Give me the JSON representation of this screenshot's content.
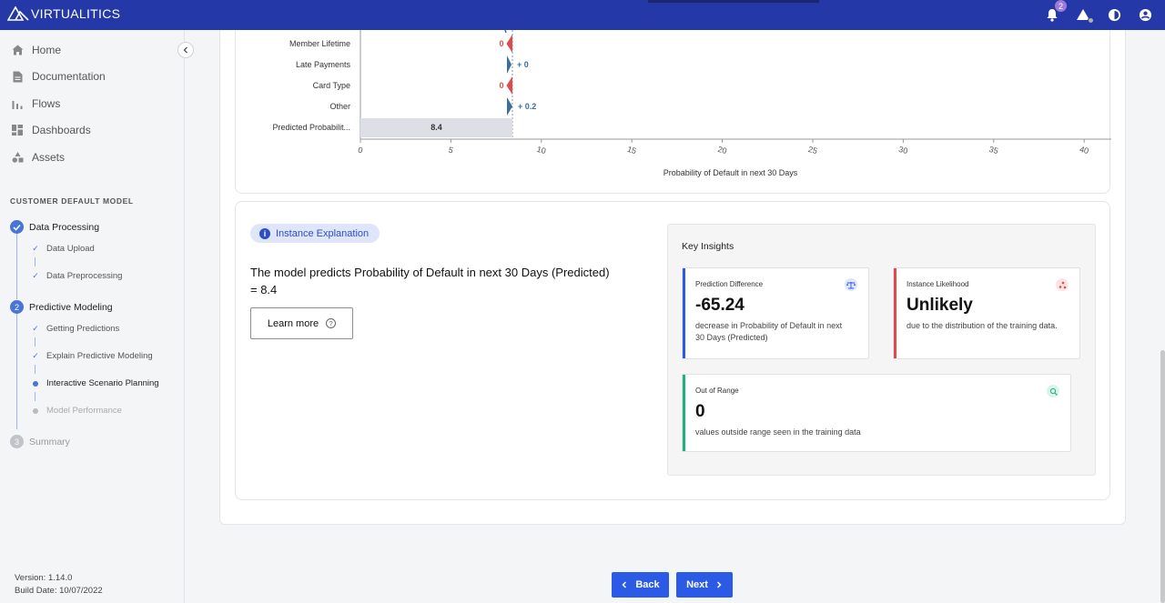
{
  "app": {
    "brand": "VIRTUALITICS",
    "notifications_count": "2"
  },
  "sidebar": {
    "nav": [
      {
        "label": "Home",
        "icon": "home-icon"
      },
      {
        "label": "Documentation",
        "icon": "document-icon"
      },
      {
        "label": "Flows",
        "icon": "flows-icon"
      },
      {
        "label": "Dashboards",
        "icon": "dashboard-icon"
      },
      {
        "label": "Assets",
        "icon": "assets-icon"
      }
    ],
    "section_title": "CUSTOMER DEFAULT MODEL",
    "steps": [
      {
        "number": "",
        "label": "Data Processing",
        "state": "done",
        "subs": [
          {
            "label": "Data Upload",
            "state": "done"
          },
          {
            "label": "Data Preprocessing",
            "state": "done"
          }
        ]
      },
      {
        "number": "2",
        "label": "Predictive Modeling",
        "state": "active",
        "subs": [
          {
            "label": "Getting Predictions",
            "state": "done"
          },
          {
            "label": "Explain Predictive Modeling",
            "state": "done"
          },
          {
            "label": "Interactive Scenario Planning",
            "state": "current"
          },
          {
            "label": "Model Performance",
            "state": "todo"
          }
        ]
      },
      {
        "number": "3",
        "label": "Summary",
        "state": "todo",
        "subs": []
      }
    ],
    "version": "Version: 1.14.0",
    "build_date": "Build Date: 10/07/2022"
  },
  "chart_data": {
    "type": "bar",
    "orientation": "horizontal",
    "categories": [
      "Member Lifetime",
      "Late Payments",
      "Card Type",
      "Other",
      "Predicted Probabilit..."
    ],
    "values": [
      0,
      0,
      0,
      0.2,
      8.4
    ],
    "data_labels": [
      "0",
      "+ 0",
      "0",
      "+ 0.2",
      "8.4"
    ],
    "xlabel": "Probability of Default in next 30 Days",
    "xlim": [
      0,
      41.5
    ],
    "xticks": [
      0,
      5,
      10,
      15,
      20,
      25,
      30,
      35,
      40
    ],
    "colors": {
      "negative": "#e04a4a",
      "positive": "#3b6e9e",
      "total": "#dcdfe5"
    }
  },
  "instance": {
    "chip_label": "Instance Explanation",
    "prediction_text": "The model predicts Probability of Default in next 30 Days (Predicted) = 8.4",
    "learn_more_label": "Learn more"
  },
  "insights": {
    "title": "Key Insights",
    "cards": [
      {
        "label": "Prediction Difference",
        "value": "-65.24",
        "desc": "decrease in Probability of Default in next 30 Days (Predicted)",
        "color": "#2a5ae6",
        "icon": "scale-icon"
      },
      {
        "label": "Instance Likelihood",
        "value": "Unlikely",
        "desc": "due to the distribution of the training data.",
        "color": "#e04a4a",
        "icon": "scatter-icon"
      },
      {
        "label": "Out of Range",
        "value": "0",
        "desc": "values outside range seen in the training data",
        "color": "#1fb27a",
        "icon": "search-chart-icon"
      }
    ]
  },
  "footer": {
    "back_label": "Back",
    "next_label": "Next"
  }
}
